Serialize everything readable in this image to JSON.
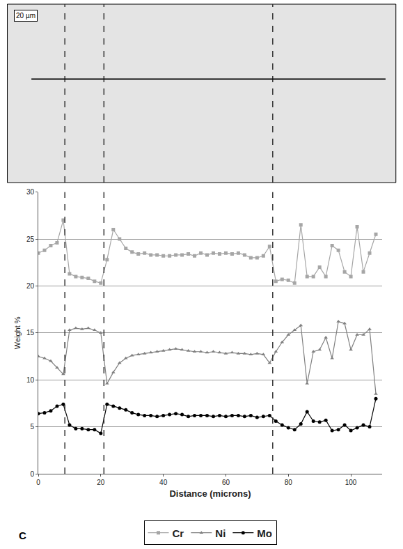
{
  "chart_data": {
    "type": "line",
    "x_label": "Distance (microns)",
    "y_label": "Weight %",
    "x": [
      0,
      2,
      4,
      6,
      8,
      10,
      12,
      14,
      16,
      18,
      20,
      22,
      24,
      26,
      28,
      30,
      32,
      34,
      36,
      38,
      40,
      42,
      44,
      46,
      48,
      50,
      52,
      54,
      56,
      58,
      60,
      62,
      64,
      66,
      68,
      70,
      72,
      74,
      76,
      78,
      80,
      82,
      84,
      86,
      88,
      90,
      92,
      94,
      96,
      98,
      100,
      102,
      104,
      106,
      108
    ],
    "series": [
      {
        "name": "Cr",
        "color": "#a6a6a6",
        "marker": "square",
        "line_style": "solid",
        "values": [
          23.5,
          23.8,
          24.3,
          24.6,
          27.0,
          21.3,
          21.0,
          20.9,
          20.8,
          20.5,
          20.3,
          22.8,
          26.0,
          25.0,
          24.0,
          23.6,
          23.4,
          23.5,
          23.3,
          23.3,
          23.2,
          23.2,
          23.3,
          23.3,
          23.4,
          23.2,
          23.5,
          23.3,
          23.5,
          23.4,
          23.5,
          23.4,
          23.5,
          23.3,
          23.0,
          23.0,
          23.2,
          24.2,
          20.5,
          20.7,
          20.6,
          20.3,
          26.5,
          21.0,
          21.0,
          22.0,
          21.0,
          24.3,
          23.8,
          21.5,
          21.0,
          26.3,
          21.5,
          23.5,
          25.5
        ]
      },
      {
        "name": "Ni",
        "color": "#808080",
        "marker": "triangle",
        "line_style": "solid",
        "values": [
          12.5,
          12.3,
          12.0,
          11.3,
          10.6,
          15.3,
          15.5,
          15.4,
          15.5,
          15.3,
          15.0,
          9.6,
          10.8,
          11.8,
          12.3,
          12.6,
          12.7,
          12.8,
          12.9,
          13.0,
          13.1,
          13.2,
          13.3,
          13.2,
          13.1,
          13.0,
          13.0,
          12.9,
          13.0,
          12.9,
          12.8,
          12.9,
          12.8,
          12.8,
          12.7,
          12.8,
          12.7,
          11.8,
          13.0,
          14.0,
          14.8,
          15.3,
          15.8,
          9.6,
          13.0,
          13.2,
          14.5,
          12.3,
          16.2,
          16.0,
          13.2,
          14.8,
          14.8,
          15.4,
          8.5
        ]
      },
      {
        "name": "Mo",
        "color": "#000000",
        "marker": "circle",
        "line_style": "solid",
        "values": [
          6.4,
          6.5,
          6.7,
          7.2,
          7.4,
          5.2,
          4.8,
          4.8,
          4.7,
          4.7,
          4.3,
          7.4,
          7.2,
          7.0,
          6.8,
          6.5,
          6.3,
          6.2,
          6.2,
          6.1,
          6.2,
          6.3,
          6.4,
          6.3,
          6.1,
          6.2,
          6.2,
          6.2,
          6.1,
          6.2,
          6.1,
          6.2,
          6.2,
          6.1,
          6.2,
          6.0,
          6.1,
          6.2,
          5.6,
          5.2,
          4.9,
          4.7,
          5.3,
          6.6,
          5.6,
          5.5,
          5.7,
          4.6,
          4.7,
          5.2,
          4.6,
          4.9,
          5.2,
          5.0,
          8.0
        ]
      }
    ],
    "xlim": [
      0,
      110
    ],
    "xticks": [
      0,
      20,
      40,
      60,
      80,
      100
    ],
    "ylim": [
      0,
      30
    ],
    "yticks": [
      0,
      5,
      10,
      15,
      20,
      25,
      30
    ],
    "grid": true,
    "legend": "bottom",
    "panel_label": "C",
    "scale_bar": "20 µm",
    "boundaries": [
      8.5,
      21,
      75
    ]
  }
}
